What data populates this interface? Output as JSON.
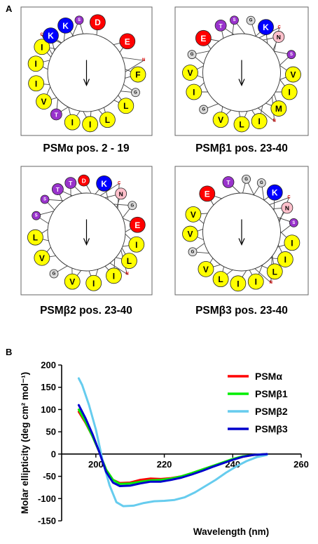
{
  "panel_a": {
    "label": "A",
    "wheels": [
      {
        "title": "PSMα pos. 2 - 19",
        "residues": [
          {
            "a": 12.5,
            "r": "large",
            "c": "red",
            "l": "D"
          },
          {
            "a": 52.5,
            "r": "large",
            "c": "red",
            "l": "E"
          },
          {
            "a": 78,
            "r": "tiny",
            "c": "red",
            "l": "N"
          },
          {
            "a": 92,
            "r": "large",
            "c": "yellow",
            "l": "F"
          },
          {
            "a": 112,
            "r": "small",
            "c": "gray",
            "l": "G"
          },
          {
            "a": 130,
            "r": "large",
            "c": "yellow",
            "l": "L"
          },
          {
            "a": 156,
            "r": "large",
            "c": "yellow",
            "l": "L"
          },
          {
            "a": 176,
            "r": "large",
            "c": "yellow",
            "l": "I"
          },
          {
            "a": 196,
            "r": "large",
            "c": "yellow",
            "l": "I"
          },
          {
            "a": 216,
            "r": "medium",
            "c": "purple",
            "l": "T"
          },
          {
            "a": 236,
            "r": "large",
            "c": "yellow",
            "l": "V"
          },
          {
            "a": 258,
            "r": "large",
            "c": "yellow",
            "l": "I"
          },
          {
            "a": 280,
            "r": "large",
            "c": "yellow",
            "l": "I"
          },
          {
            "a": 300,
            "r": "large",
            "c": "yellow",
            "l": "I"
          },
          {
            "a": 310,
            "r": "tiny",
            "c": "red",
            "l": "C"
          },
          {
            "a": 316,
            "r": "large",
            "c": "blue",
            "l": "K"
          },
          {
            "a": 336,
            "r": "large",
            "c": "blue",
            "l": "K"
          },
          {
            "a": 352,
            "r": "small",
            "c": "purple",
            "l": "S"
          }
        ]
      },
      {
        "title": "PSMβ1 pos. 23-40",
        "residues": [
          {
            "a": 10,
            "r": "small",
            "c": "gray",
            "l": "G"
          },
          {
            "a": 28,
            "r": "large",
            "c": "blue",
            "l": "K"
          },
          {
            "a": 40,
            "r": "tiny",
            "c": "red",
            "l": "C"
          },
          {
            "a": 46,
            "r": "medium",
            "c": "pink",
            "l": "N"
          },
          {
            "a": 70,
            "r": "small",
            "c": "purple",
            "l": "S"
          },
          {
            "a": 92,
            "r": "large",
            "c": "yellow",
            "l": "V"
          },
          {
            "a": 112,
            "r": "large",
            "c": "yellow",
            "l": "I"
          },
          {
            "a": 134,
            "r": "large",
            "c": "yellow",
            "l": "M"
          },
          {
            "a": 146,
            "r": "tiny",
            "c": "red",
            "l": "N"
          },
          {
            "a": 160,
            "r": "large",
            "c": "yellow",
            "l": "I"
          },
          {
            "a": 180,
            "r": "large",
            "c": "yellow",
            "l": "L"
          },
          {
            "a": 204,
            "r": "large",
            "c": "yellow",
            "l": "V"
          },
          {
            "a": 226,
            "r": "small",
            "c": "gray",
            "l": "G"
          },
          {
            "a": 248,
            "r": "large",
            "c": "yellow",
            "l": "I"
          },
          {
            "a": 270,
            "r": "large",
            "c": "yellow",
            "l": "V"
          },
          {
            "a": 290,
            "r": "small",
            "c": "gray",
            "l": "G"
          },
          {
            "a": 312,
            "r": "large",
            "c": "red",
            "l": "E"
          },
          {
            "a": 336,
            "r": "medium",
            "c": "purple",
            "l": "T"
          },
          {
            "a": 352,
            "r": "small",
            "c": "purple",
            "l": "S"
          }
        ]
      },
      {
        "title": "PSMβ2 pos. 23-40",
        "residues": [
          {
            "a": 357,
            "r": "medium",
            "c": "red",
            "l": "D"
          },
          {
            "a": 20,
            "r": "large",
            "c": "blue",
            "l": "K"
          },
          {
            "a": 34,
            "r": "tiny",
            "c": "red",
            "l": "C"
          },
          {
            "a": 42,
            "r": "medium",
            "c": "pink",
            "l": "N"
          },
          {
            "a": 60,
            "r": "small",
            "c": "gray",
            "l": "G"
          },
          {
            "a": 82,
            "r": "large",
            "c": "red",
            "l": "E"
          },
          {
            "a": 104,
            "r": "large",
            "c": "yellow",
            "l": "I"
          },
          {
            "a": 124,
            "r": "large",
            "c": "yellow",
            "l": "L"
          },
          {
            "a": 136,
            "r": "tiny",
            "c": "red",
            "l": "N"
          },
          {
            "a": 148,
            "r": "large",
            "c": "yellow",
            "l": "I"
          },
          {
            "a": 172,
            "r": "large",
            "c": "yellow",
            "l": "I"
          },
          {
            "a": 196,
            "r": "large",
            "c": "yellow",
            "l": "V"
          },
          {
            "a": 218,
            "r": "small",
            "c": "gray",
            "l": "G"
          },
          {
            "a": 240,
            "r": "large",
            "c": "yellow",
            "l": "V"
          },
          {
            "a": 264,
            "r": "large",
            "c": "yellow",
            "l": "L"
          },
          {
            "a": 288,
            "r": "small",
            "c": "purple",
            "l": "S"
          },
          {
            "a": 308,
            "r": "small",
            "c": "purple",
            "l": "S"
          },
          {
            "a": 326,
            "r": "medium",
            "c": "purple",
            "l": "T"
          },
          {
            "a": 342,
            "r": "medium",
            "c": "purple",
            "l": "T"
          }
        ]
      },
      {
        "title": "PSMβ3 pos. 23-40",
        "residues": [
          {
            "a": 345,
            "r": "medium",
            "c": "purple",
            "l": "T"
          },
          {
            "a": 5,
            "r": "small",
            "c": "gray",
            "l": "G"
          },
          {
            "a": 22,
            "r": "small",
            "c": "gray",
            "l": "G"
          },
          {
            "a": 40,
            "r": "large",
            "c": "blue",
            "l": "K"
          },
          {
            "a": 54,
            "r": "tiny",
            "c": "red",
            "l": "C"
          },
          {
            "a": 62,
            "r": "medium",
            "c": "pink",
            "l": "N"
          },
          {
            "a": 80,
            "r": "small",
            "c": "purple",
            "l": "S"
          },
          {
            "a": 102,
            "r": "large",
            "c": "yellow",
            "l": "I"
          },
          {
            "a": 122,
            "r": "large",
            "c": "yellow",
            "l": "I"
          },
          {
            "a": 140,
            "r": "large",
            "c": "yellow",
            "l": "L"
          },
          {
            "a": 150,
            "r": "tiny",
            "c": "red",
            "l": "N"
          },
          {
            "a": 164,
            "r": "large",
            "c": "yellow",
            "l": "I"
          },
          {
            "a": 184,
            "r": "large",
            "c": "yellow",
            "l": "I"
          },
          {
            "a": 204,
            "r": "large",
            "c": "yellow",
            "l": "L"
          },
          {
            "a": 224,
            "r": "large",
            "c": "yellow",
            "l": "V"
          },
          {
            "a": 248,
            "r": "small",
            "c": "gray",
            "l": "G"
          },
          {
            "a": 268,
            "r": "large",
            "c": "yellow",
            "l": "V"
          },
          {
            "a": 290,
            "r": "large",
            "c": "yellow",
            "l": "V"
          },
          {
            "a": 318,
            "r": "large",
            "c": "red",
            "l": "E"
          }
        ]
      }
    ]
  },
  "panel_b": {
    "label": "B"
  },
  "residue_colors": {
    "yellow": "#ffff00",
    "blue": "#0000ff",
    "red": "#ff0000",
    "purple": "#9933cc",
    "pink": "#ffc0cb",
    "gray": "#d9d9d9"
  },
  "chart_data": {
    "type": "line",
    "xlabel": "Wavelength (nm)",
    "ylabel": "Molar ellipticity (deg cm² mol⁻¹)",
    "xlim": [
      190,
      260
    ],
    "ylim": [
      -150,
      200
    ],
    "xticks": [
      200,
      220,
      240,
      260
    ],
    "yticks": [
      -150,
      -100,
      -50,
      0,
      50,
      100,
      150,
      200
    ],
    "grid": false,
    "legend_position": "top-right",
    "series": [
      {
        "name": "PSMα",
        "color": "#ff0000",
        "points": [
          [
            195,
            95
          ],
          [
            197,
            70
          ],
          [
            199,
            40
          ],
          [
            201,
            5
          ],
          [
            203,
            -35
          ],
          [
            205,
            -58
          ],
          [
            207,
            -65
          ],
          [
            210,
            -64
          ],
          [
            213,
            -58
          ],
          [
            216,
            -55
          ],
          [
            219,
            -56
          ],
          [
            222,
            -54
          ],
          [
            225,
            -50
          ],
          [
            228,
            -43
          ],
          [
            231,
            -35
          ],
          [
            234,
            -27
          ],
          [
            237,
            -20
          ],
          [
            240,
            -12
          ],
          [
            243,
            -6
          ],
          [
            246,
            -2
          ],
          [
            250,
            0
          ]
        ]
      },
      {
        "name": "PSMβ1",
        "color": "#00ee00",
        "points": [
          [
            195,
            100
          ],
          [
            197,
            72
          ],
          [
            199,
            40
          ],
          [
            201,
            5
          ],
          [
            203,
            -35
          ],
          [
            205,
            -58
          ],
          [
            207,
            -67
          ],
          [
            210,
            -66
          ],
          [
            213,
            -62
          ],
          [
            216,
            -59
          ],
          [
            219,
            -58
          ],
          [
            222,
            -55
          ],
          [
            225,
            -50
          ],
          [
            228,
            -43
          ],
          [
            231,
            -35
          ],
          [
            234,
            -27
          ],
          [
            237,
            -19
          ],
          [
            240,
            -11
          ],
          [
            243,
            -5
          ],
          [
            246,
            -2
          ],
          [
            250,
            0
          ]
        ]
      },
      {
        "name": "PSMβ2",
        "color": "#66ccee",
        "points": [
          [
            195,
            170
          ],
          [
            196,
            155
          ],
          [
            198,
            110
          ],
          [
            200,
            55
          ],
          [
            202,
            -15
          ],
          [
            204,
            -70
          ],
          [
            206,
            -108
          ],
          [
            208,
            -117
          ],
          [
            211,
            -116
          ],
          [
            214,
            -110
          ],
          [
            217,
            -106
          ],
          [
            220,
            -105
          ],
          [
            223,
            -103
          ],
          [
            226,
            -97
          ],
          [
            229,
            -86
          ],
          [
            232,
            -72
          ],
          [
            235,
            -58
          ],
          [
            238,
            -42
          ],
          [
            241,
            -28
          ],
          [
            244,
            -16
          ],
          [
            247,
            -7
          ],
          [
            250,
            -2
          ]
        ]
      },
      {
        "name": "PSMβ3",
        "color": "#0000cc",
        "points": [
          [
            195,
            110
          ],
          [
            197,
            80
          ],
          [
            199,
            45
          ],
          [
            201,
            5
          ],
          [
            203,
            -40
          ],
          [
            205,
            -64
          ],
          [
            207,
            -72
          ],
          [
            210,
            -71
          ],
          [
            213,
            -66
          ],
          [
            216,
            -62
          ],
          [
            219,
            -62
          ],
          [
            222,
            -58
          ],
          [
            225,
            -53
          ],
          [
            228,
            -46
          ],
          [
            231,
            -38
          ],
          [
            234,
            -29
          ],
          [
            237,
            -21
          ],
          [
            240,
            -13
          ],
          [
            243,
            -6
          ],
          [
            246,
            -2
          ],
          [
            250,
            0
          ]
        ]
      }
    ]
  }
}
